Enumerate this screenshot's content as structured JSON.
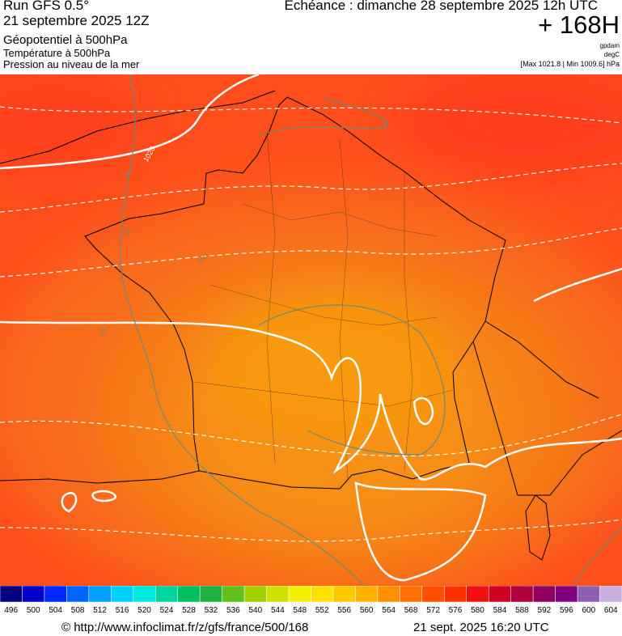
{
  "header": {
    "run": "Run GFS 0.5°",
    "run_date": "21 septembre 2025 12Z",
    "field_1": "Géopotentiel à 500hPa",
    "field_2": "Température à 500hPa",
    "field_3": "Pression au niveau de la mer",
    "forecast_time": "Echéance : dimanche 28 septembre 2025 12h UTC",
    "lead_time": "+ 168H",
    "unit_1": "gpdam",
    "unit_2": "degC",
    "pressure_range": "[Max 1021.8 | Min 1009.6] hPa"
  },
  "map": {
    "contour_labels": [
      "1020",
      "16",
      "16",
      "16",
      "16",
      "16"
    ]
  },
  "color_scale": {
    "values": [
      496,
      500,
      504,
      508,
      512,
      516,
      520,
      524,
      528,
      532,
      536,
      540,
      544,
      548,
      552,
      556,
      560,
      564,
      568,
      572,
      576,
      580,
      584,
      588,
      592,
      596,
      600,
      604
    ],
    "colors": [
      "#000080",
      "#0000c8",
      "#0028ff",
      "#0064ff",
      "#00a0ff",
      "#00d0ff",
      "#00e8e0",
      "#00d2a0",
      "#00c060",
      "#20b040",
      "#60c020",
      "#a0d000",
      "#d0e000",
      "#f0f000",
      "#ffe000",
      "#ffc800",
      "#ffb000",
      "#ff9000",
      "#ff7000",
      "#ff5000",
      "#ff3000",
      "#f01010",
      "#d00020",
      "#b00040",
      "#900060",
      "#800080",
      "#9060b0",
      "#c8b0e0"
    ]
  },
  "footer": {
    "source": "© http://www.infoclimat.fr/z/gfs/france/500/168",
    "timestamp": "21 sept. 2025 16:20 UTC"
  }
}
